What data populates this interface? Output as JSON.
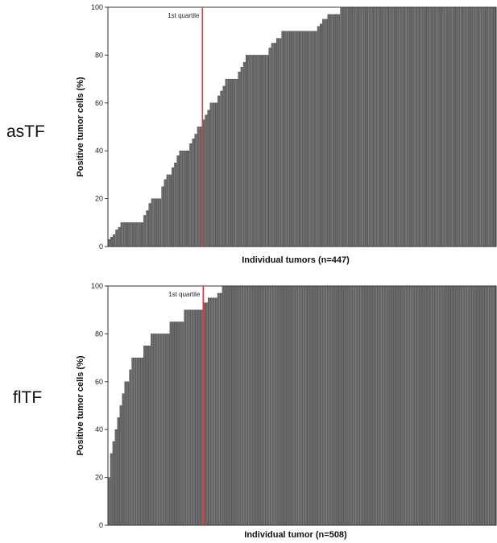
{
  "panels": [
    {
      "label": "asTF"
    },
    {
      "label": "flTF"
    }
  ],
  "chart_data": [
    {
      "type": "bar",
      "panel_label": "asTF",
      "ylabel": "Positive tumor cells (%)",
      "xlabel": "Individual tumors (n=447)",
      "ylim": [
        0,
        100
      ],
      "yticks": [
        0,
        20,
        40,
        60,
        80,
        100
      ],
      "annotation": {
        "text": "1st quartile",
        "x_index": 37,
        "color": "#e8343c"
      },
      "bar_color": "#6b6b6b",
      "values": [
        3,
        4,
        5,
        7,
        8,
        10,
        10,
        10,
        10,
        10,
        10,
        10,
        10,
        10,
        13,
        15,
        18,
        20,
        20,
        20,
        20,
        25,
        28,
        30,
        30,
        33,
        35,
        38,
        40,
        40,
        40,
        40,
        43,
        45,
        47,
        50,
        50,
        53,
        55,
        57,
        60,
        60,
        60,
        63,
        65,
        67,
        70,
        70,
        70,
        70,
        70,
        73,
        75,
        77,
        80,
        80,
        80,
        80,
        80,
        80,
        80,
        80,
        80,
        83,
        85,
        85,
        87,
        87,
        90,
        90,
        90,
        90,
        90,
        90,
        90,
        90,
        90,
        90,
        90,
        90,
        90,
        90,
        92,
        93,
        95,
        95,
        97,
        97,
        97,
        97,
        97,
        100,
        100,
        100,
        100,
        100,
        100,
        100,
        100,
        100,
        100,
        100,
        100,
        100,
        100,
        100,
        100,
        100,
        100,
        100,
        100,
        100,
        100,
        100,
        100,
        100,
        100,
        100,
        100,
        100,
        100,
        100,
        100,
        100,
        100,
        100,
        100,
        100,
        100,
        100,
        100,
        100,
        100,
        100,
        100,
        100,
        100,
        100,
        100,
        100,
        100,
        100,
        100,
        100,
        100,
        100,
        100,
        100,
        100,
        100,
        100,
        100
      ]
    },
    {
      "type": "bar",
      "panel_label": "flTF",
      "ylabel": "Positive tumor cells (%)",
      "xlabel": "Individual tumor (n=508)",
      "ylim": [
        0,
        100
      ],
      "yticks": [
        0,
        20,
        40,
        60,
        80,
        100
      ],
      "annotation": {
        "text": "1st quartile",
        "x_index": 40,
        "color": "#e8343c"
      },
      "bar_color": "#6b6b6b",
      "values": [
        20,
        30,
        35,
        40,
        45,
        50,
        55,
        60,
        60,
        65,
        70,
        70,
        70,
        70,
        70,
        75,
        75,
        75,
        80,
        80,
        80,
        80,
        80,
        80,
        80,
        80,
        85,
        85,
        85,
        85,
        85,
        85,
        90,
        90,
        90,
        90,
        90,
        90,
        90,
        90,
        93,
        93,
        95,
        95,
        95,
        95,
        97,
        97,
        100,
        100,
        100,
        100,
        100,
        100,
        100,
        100,
        100,
        100,
        100,
        100,
        100,
        100,
        100,
        100,
        100,
        100,
        100,
        100,
        100,
        100,
        100,
        100,
        100,
        100,
        100,
        100,
        100,
        100,
        100,
        100,
        100,
        100,
        100,
        100,
        100,
        100,
        100,
        100,
        100,
        100,
        100,
        100,
        100,
        100,
        100,
        100,
        100,
        100,
        100,
        100,
        100,
        100,
        100,
        100,
        100,
        100,
        100,
        100,
        100,
        100,
        100,
        100,
        100,
        100,
        100,
        100,
        100,
        100,
        100,
        100,
        100,
        100,
        100,
        100,
        100,
        100,
        100,
        100,
        100,
        100,
        100,
        100,
        100,
        100,
        100,
        100,
        100,
        100,
        100,
        100,
        100,
        100,
        100,
        100,
        100,
        100,
        100,
        100,
        100,
        100,
        100,
        100,
        100,
        100,
        100,
        100,
        100,
        100,
        100,
        100,
        100,
        100,
        100
      ]
    }
  ]
}
